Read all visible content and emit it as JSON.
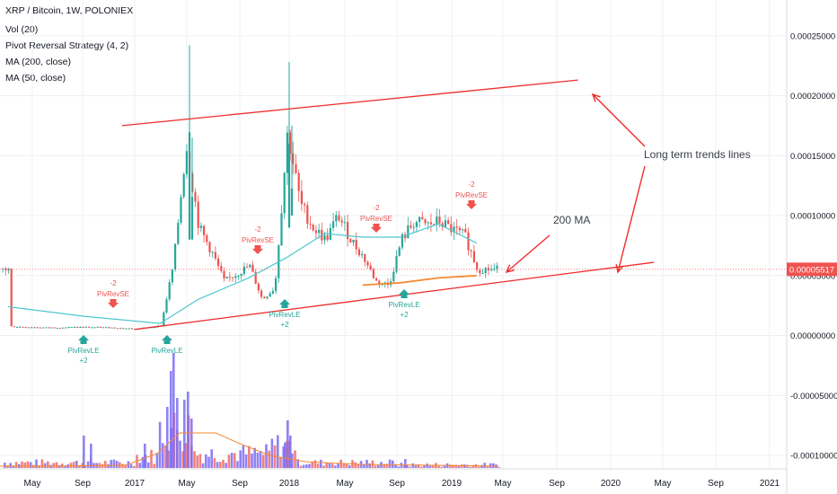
{
  "header": {
    "symbol_title": "XRP / Bitcoin, 1W, POLONIEX",
    "indicators": [
      "Vol (20)",
      "Pivot Reversal Strategy (4, 2)",
      "MA (200, close)",
      "MA (50, close)"
    ]
  },
  "price_axis": {
    "ticks": [
      "0.00025000",
      "0.00020000",
      "0.00015000",
      "0.00010000",
      "0.00005000",
      "0.00000000",
      "-0.00005000",
      "-0.00010000"
    ],
    "current_price": "0.00005517"
  },
  "time_axis": {
    "ticks": [
      "May",
      "Sep",
      "2017",
      "May",
      "Sep",
      "2018",
      "May",
      "Sep",
      "2019",
      "May",
      "Sep",
      "2020",
      "May",
      "Sep",
      "2021"
    ]
  },
  "annotations": {
    "trend_label": "Long term trends lines",
    "ma_label": "200 MA"
  },
  "signals": [
    {
      "type": "short",
      "label": "PivRevSE",
      "qty": "-2"
    },
    {
      "type": "long",
      "label": "PivRevLE",
      "qty": "+2"
    },
    {
      "type": "long",
      "label": "PivRevLE",
      "qty": ""
    },
    {
      "type": "short",
      "label": "PivRevSE",
      "qty": "-2"
    },
    {
      "type": "long",
      "label": "PivRevLE",
      "qty": "+2"
    },
    {
      "type": "short",
      "label": "PivRevSE",
      "qty": "-2"
    },
    {
      "type": "long",
      "label": "PivRevLE",
      "qty": "+2"
    },
    {
      "type": "short",
      "label": "PivRevSE",
      "qty": "-2"
    }
  ],
  "colors": {
    "up": "#26a69a",
    "down": "#ef5350",
    "ma50": "#4dc7d1",
    "ma200": "#f58a33",
    "trend": "#ef2b2b",
    "volume_up": "#7b6cf6",
    "volume_down": "#ef6b6b",
    "grid": "#eef0f3"
  },
  "chart_data": {
    "type": "candlestick",
    "title": "XRP / Bitcoin, 1W, POLONIEX",
    "ylim": [
      -0.00012,
      0.00028
    ],
    "x_range": [
      "2016-03",
      "2021-02"
    ],
    "grid": true,
    "close_series": [
      [
        "2016-03",
        7.5e-06
      ],
      [
        "2016-06",
        6.5e-06
      ],
      [
        "2016-09",
        7e-06
      ],
      [
        "2016-11",
        6.6e-06
      ],
      [
        "2017-01",
        5.5e-06
      ],
      [
        "2017-03",
        8e-06
      ],
      [
        "2017-04",
        6e-05
      ],
      [
        "2017-05",
        0.00016
      ],
      [
        "2017-06",
        9e-05
      ],
      [
        "2017-07",
        7e-05
      ],
      [
        "2017-08",
        4.5e-05
      ],
      [
        "2017-10",
        5.8e-05
      ],
      [
        "2017-11",
        3e-05
      ],
      [
        "2017-12",
        4e-05
      ],
      [
        "2018-01",
        0.00017
      ],
      [
        "2018-02",
        0.00011
      ],
      [
        "2018-03",
        9e-05
      ],
      [
        "2018-04",
        8e-05
      ],
      [
        "2018-05",
        0.0001
      ],
      [
        "2018-06",
        8e-05
      ],
      [
        "2018-07",
        6.5e-05
      ],
      [
        "2018-08",
        4.5e-05
      ],
      [
        "2018-09",
        4.2e-05
      ],
      [
        "2018-10",
        8e-05
      ],
      [
        "2018-11",
        9.5e-05
      ],
      [
        "2018-12",
        9.2e-05
      ],
      [
        "2019-01",
        9.5e-05
      ],
      [
        "2019-02",
        8.8e-05
      ],
      [
        "2019-03",
        8.3e-05
      ],
      [
        "2019-04",
        5.52e-05
      ]
    ],
    "ma50": [
      [
        "2016-03",
        2.4e-05
      ],
      [
        "2016-09",
        1.6e-05
      ],
      [
        "2017-03",
        1e-05
      ],
      [
        "2017-06",
        3e-05
      ],
      [
        "2017-10",
        4.8e-05
      ],
      [
        "2018-01",
        6.5e-05
      ],
      [
        "2018-04",
        8.5e-05
      ],
      [
        "2018-07",
        8.2e-05
      ],
      [
        "2018-10",
        8.2e-05
      ],
      [
        "2019-01",
        9.3e-05
      ],
      [
        "2019-04",
        7.7e-05
      ]
    ],
    "ma200": [
      [
        "2018-07",
        4.2e-05
      ],
      [
        "2018-10",
        4.4e-05
      ],
      [
        "2019-01",
        4.8e-05
      ],
      [
        "2019-04",
        5e-05
      ]
    ],
    "trend_lines": [
      {
        "from": [
          "2016-12",
          0.000175
        ],
        "to": [
          "2019-12",
          0.000213
        ]
      },
      {
        "from": [
          "2017-01",
          5e-06
        ],
        "to": [
          "2020-06",
          6.1e-05
        ]
      }
    ],
    "volume_peaks": [
      [
        "2017-04",
        "high"
      ],
      [
        "2017-05",
        "very high"
      ],
      [
        "2018-01",
        "high"
      ],
      [
        "2019-02",
        "low"
      ]
    ]
  }
}
